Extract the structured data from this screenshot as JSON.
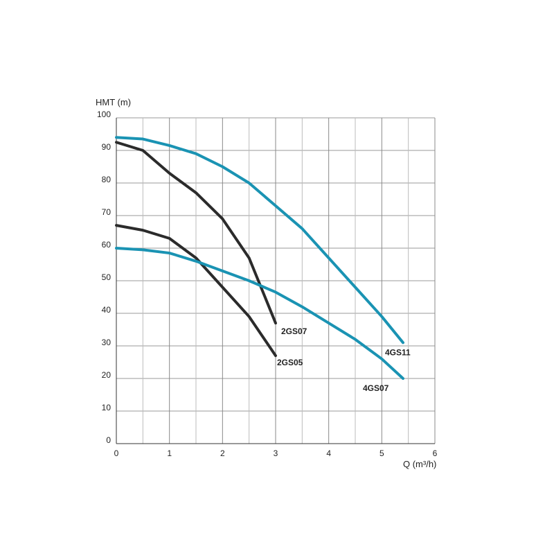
{
  "chart_data": {
    "type": "line",
    "y_label": "HMT (m)",
    "x_label": "Q (m³/h)",
    "xlim": [
      0,
      6
    ],
    "xticks": [
      0,
      1,
      2,
      3,
      4,
      5,
      6
    ],
    "ylim": [
      0,
      100
    ],
    "yticks": [
      0,
      10,
      20,
      30,
      40,
      50,
      60,
      70,
      80,
      90,
      100
    ],
    "grid": true,
    "series": [
      {
        "name": "2GS07",
        "color": "#2b2b2b",
        "x": [
          0,
          0.5,
          1,
          1.5,
          2,
          2.5,
          3
        ],
        "values": [
          92.5,
          90,
          83,
          77,
          69,
          57,
          37
        ]
      },
      {
        "name": "2GS05",
        "color": "#2b2b2b",
        "x": [
          0,
          0.5,
          1,
          1.5,
          2,
          2.5,
          3
        ],
        "values": [
          67,
          65.5,
          63,
          57,
          48,
          39,
          27
        ]
      },
      {
        "name": "4GS11",
        "color": "#1a93b3",
        "x": [
          0,
          0.5,
          1,
          1.5,
          2,
          2.5,
          3,
          3.5,
          4,
          4.5,
          5,
          5.4
        ],
        "values": [
          94,
          93.5,
          91.5,
          89,
          85,
          80,
          73,
          66,
          57,
          48,
          39,
          31
        ]
      },
      {
        "name": "4GS07",
        "color": "#1a93b3",
        "x": [
          0,
          0.5,
          1,
          1.5,
          2,
          2.5,
          3,
          3.5,
          4,
          4.5,
          5,
          5.4
        ],
        "values": [
          60,
          59.5,
          58.5,
          56,
          53,
          50,
          46.5,
          42,
          37,
          32,
          26,
          20
        ]
      }
    ]
  }
}
